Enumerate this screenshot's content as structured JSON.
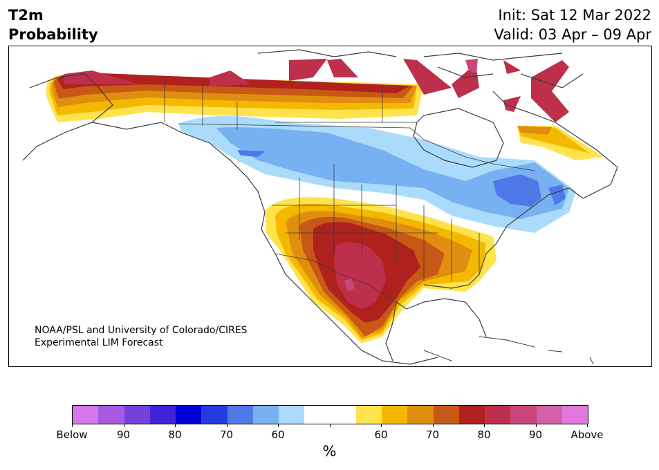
{
  "header": {
    "title_line1": "T2m",
    "title_line2": "Probability",
    "init": "Init: Sat 12 Mar 2022",
    "valid": "Valid: 03 Apr – 09 Apr"
  },
  "map": {
    "credit_line1": "NOAA/PSL and University of Colorado/CIRES",
    "credit_line2": "Experimental LIM Forecast"
  },
  "colorbar": {
    "colors": [
      "#d777ec",
      "#a95ae3",
      "#7540db",
      "#4222d8",
      "#0000d6",
      "#263bdf",
      "#4f79e8",
      "#78b1f2",
      "#aadbfb",
      "#ffffff",
      "#ffffff",
      "#ffe34d",
      "#f5b800",
      "#e08e0f",
      "#c85815",
      "#b0211e",
      "#bd2f4b",
      "#c8467a",
      "#d460a9",
      "#e377dd"
    ],
    "tick_labels": [
      "Below",
      "90",
      "80",
      "70",
      "60",
      "",
      "60",
      "70",
      "80",
      "90",
      "Above"
    ],
    "unit": "%"
  }
}
